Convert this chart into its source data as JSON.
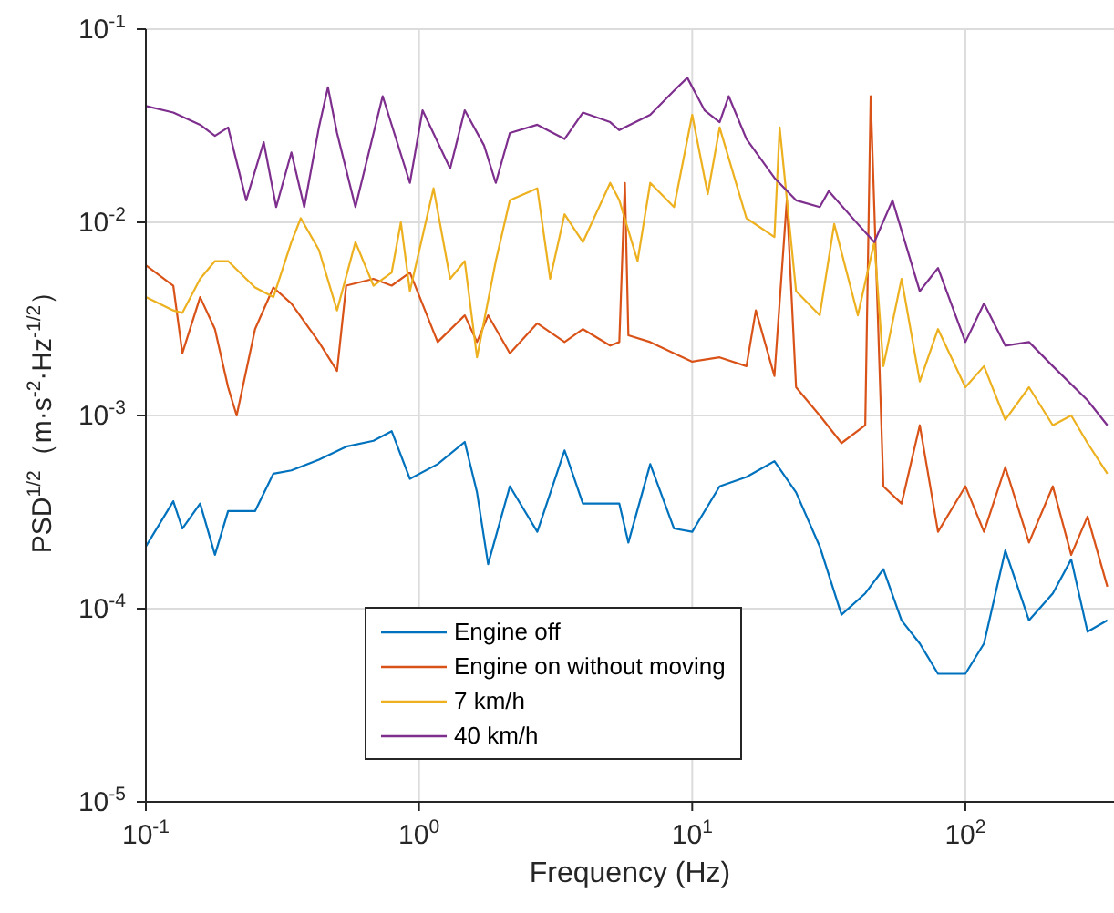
{
  "chart_data": {
    "type": "line",
    "xlabel": "Frequency (Hz)",
    "ylabel": "PSD$^{1/2}$（m·s$^{-2}$·Hz$^{-1/2}$）",
    "log": "xy",
    "grid": true,
    "legend": "bottom left",
    "marker": "none",
    "line_style": "solid",
    "xlim": [
      0.1,
      350
    ],
    "xticks": [
      {
        "value": 0.1,
        "label": "10$^{-1}$"
      },
      {
        "value": 1,
        "label": "10$^{0}$"
      },
      {
        "value": 10,
        "label": "10$^{1}$"
      },
      {
        "value": 100,
        "label": "10$^{2}$"
      }
    ],
    "ylim": [
      1e-05,
      0.1
    ],
    "yticks": [
      {
        "value": 1e-05,
        "label": "10$^{-5}$"
      },
      {
        "value": 0.0001,
        "label": "10$^{-4}$"
      },
      {
        "value": 0.001,
        "label": "10$^{-3}$"
      },
      {
        "value": 0.01,
        "label": "10$^{-2}$"
      },
      {
        "value": 0.1,
        "label": "10$^{-1}$"
      }
    ],
    "series": [
      {
        "name": "Engine off",
        "color": "#0072bd",
        "x": [
          0.1,
          0.126,
          0.136,
          0.158,
          0.179,
          0.2,
          0.251,
          0.293,
          0.341,
          0.43,
          0.541,
          0.681,
          0.794,
          0.926,
          1.17,
          1.47,
          1.63,
          1.79,
          2.15,
          2.71,
          3.41,
          3.98,
          5.01,
          5.41,
          5.84,
          7.02,
          8.58,
          10,
          12.6,
          15.8,
          20,
          24,
          29.3,
          35.2,
          43,
          50.1,
          58.4,
          68.1,
          79.4,
          100,
          117,
          140,
          171,
          209,
          244,
          280,
          331
        ],
        "values": [
          0.00021,
          0.00036,
          0.00026,
          0.00035,
          0.00019,
          0.00032,
          0.00032,
          0.0005,
          0.00052,
          0.00059,
          0.00069,
          0.00074,
          0.00083,
          0.00047,
          0.00056,
          0.00073,
          0.0004,
          0.00017,
          0.00043,
          0.00025,
          0.00066,
          0.00035,
          0.00035,
          0.00035,
          0.00022,
          0.00056,
          0.00026,
          0.00025,
          0.00043,
          0.00048,
          0.00058,
          0.0004,
          0.00021,
          9.3e-05,
          0.00012,
          0.00016,
          8.7e-05,
          6.6e-05,
          4.6e-05,
          4.6e-05,
          6.6e-05,
          0.0002,
          8.7e-05,
          0.00012,
          0.00018,
          7.6e-05,
          8.7e-05
        ]
      },
      {
        "name": "Engine on without moving",
        "color": "#d95319",
        "x": [
          0.1,
          0.126,
          0.136,
          0.158,
          0.179,
          0.2,
          0.215,
          0.251,
          0.293,
          0.341,
          0.43,
          0.501,
          0.541,
          0.681,
          0.794,
          0.926,
          1.17,
          1.47,
          1.63,
          1.79,
          2.15,
          2.71,
          3.41,
          3.98,
          5.01,
          5.41,
          5.67,
          5.84,
          7.02,
          8.58,
          10,
          12.6,
          15.8,
          17.1,
          20,
          22.2,
          24,
          29.3,
          35.2,
          43,
          45,
          50.1,
          58.4,
          68.1,
          79.4,
          100,
          117,
          140,
          171,
          209,
          244,
          280,
          331
        ],
        "values": [
          0.006,
          0.0047,
          0.0021,
          0.0041,
          0.0028,
          0.0014,
          0.001,
          0.0028,
          0.0046,
          0.0038,
          0.0024,
          0.0017,
          0.0047,
          0.0051,
          0.0047,
          0.0055,
          0.0024,
          0.0033,
          0.0024,
          0.0033,
          0.0021,
          0.003,
          0.0024,
          0.0028,
          0.0023,
          0.0024,
          0.016,
          0.0026,
          0.0024,
          0.0021,
          0.0019,
          0.002,
          0.0018,
          0.0035,
          0.0016,
          0.013,
          0.0014,
          0.001,
          0.00072,
          0.00089,
          0.045,
          0.00043,
          0.00035,
          0.00089,
          0.00025,
          0.00043,
          0.00025,
          0.00054,
          0.00022,
          0.00043,
          0.00019,
          0.0003,
          0.00013
        ]
      },
      {
        "name": "7 km/h",
        "color": "#edb120",
        "x": [
          0.1,
          0.126,
          0.136,
          0.158,
          0.179,
          0.2,
          0.251,
          0.293,
          0.341,
          0.369,
          0.43,
          0.501,
          0.585,
          0.681,
          0.794,
          0.858,
          0.926,
          1.13,
          1.3,
          1.47,
          1.63,
          1.91,
          2.15,
          2.71,
          3.02,
          3.41,
          3.98,
          5.01,
          5.41,
          6.31,
          7.02,
          8.58,
          10,
          11.4,
          12.6,
          15.8,
          20,
          20.9,
          24,
          29.3,
          33.1,
          40.4,
          46.4,
          50.1,
          58.4,
          68.1,
          79.4,
          100,
          117,
          140,
          171,
          209,
          244,
          280,
          331
        ],
        "values": [
          0.0041,
          0.0035,
          0.0034,
          0.0051,
          0.0063,
          0.0063,
          0.0046,
          0.0041,
          0.0079,
          0.0105,
          0.0072,
          0.0035,
          0.0079,
          0.0047,
          0.0055,
          0.01,
          0.0044,
          0.015,
          0.0051,
          0.0063,
          0.002,
          0.0063,
          0.013,
          0.015,
          0.0051,
          0.011,
          0.0079,
          0.016,
          0.013,
          0.0063,
          0.016,
          0.012,
          0.036,
          0.014,
          0.031,
          0.0105,
          0.0084,
          0.031,
          0.0044,
          0.0033,
          0.0098,
          0.0033,
          0.0079,
          0.0018,
          0.0051,
          0.0015,
          0.0028,
          0.0014,
          0.0018,
          0.00095,
          0.0014,
          0.00089,
          0.001,
          0.00072,
          0.0005
        ]
      },
      {
        "name": "40 km/h",
        "color": "#7e2f8e",
        "x": [
          0.1,
          0.126,
          0.158,
          0.179,
          0.2,
          0.233,
          0.27,
          0.3,
          0.341,
          0.38,
          0.43,
          0.464,
          0.501,
          0.585,
          0.736,
          0.926,
          1.03,
          1.3,
          1.47,
          1.73,
          1.91,
          2.15,
          2.71,
          3.41,
          3.98,
          5.01,
          5.41,
          7.02,
          8.58,
          9.6,
          11.1,
          12.6,
          13.6,
          15.8,
          20,
          24,
          29.3,
          31.6,
          40.4,
          46.4,
          54.1,
          68.1,
          79.4,
          100,
          117,
          140,
          171,
          209,
          280,
          331
        ],
        "values": [
          0.04,
          0.037,
          0.032,
          0.028,
          0.031,
          0.013,
          0.026,
          0.012,
          0.023,
          0.012,
          0.031,
          0.05,
          0.029,
          0.012,
          0.045,
          0.016,
          0.038,
          0.019,
          0.038,
          0.025,
          0.016,
          0.029,
          0.032,
          0.027,
          0.037,
          0.033,
          0.03,
          0.036,
          0.048,
          0.056,
          0.038,
          0.033,
          0.045,
          0.027,
          0.017,
          0.013,
          0.012,
          0.0145,
          0.0098,
          0.0079,
          0.013,
          0.0044,
          0.0058,
          0.0024,
          0.0038,
          0.0023,
          0.0024,
          0.0018,
          0.0012,
          0.00089
        ]
      }
    ]
  }
}
